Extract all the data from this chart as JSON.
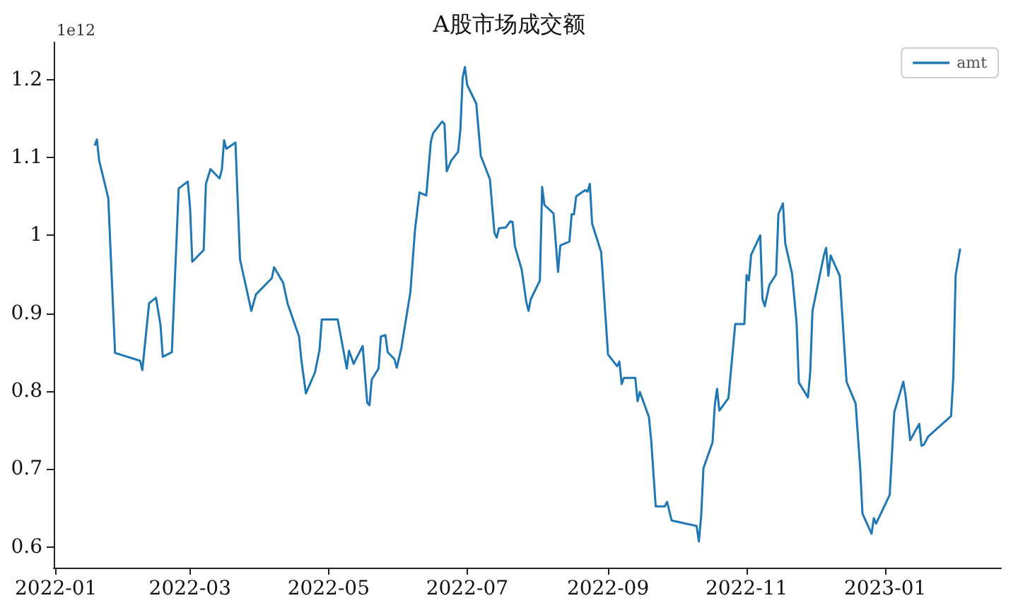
{
  "chart_data": {
    "type": "line",
    "title": "A股市场成交额",
    "annotations": [
      "1e12"
    ],
    "legend": "top right",
    "grid": false,
    "xlim": [
      "2021-12-31",
      "2023-02-21"
    ],
    "xticks": [
      "2022-01",
      "2022-03",
      "2022-05",
      "2022-07",
      "2022-09",
      "2022-11",
      "2023-01"
    ],
    "ylim": [
      0.5735,
      1.2476
    ],
    "yticks": [
      0.6,
      0.7,
      0.8,
      0.9,
      1.0,
      1.1,
      1.2
    ],
    "x": [
      "2022-01-18",
      "2022-01-19",
      "2022-01-20",
      "2022-01-24",
      "2022-01-27",
      "2022-02-07",
      "2022-02-08",
      "2022-02-11",
      "2022-02-14",
      "2022-02-16",
      "2022-02-17",
      "2022-02-21",
      "2022-02-24",
      "2022-02-28",
      "2022-03-01",
      "2022-03-02",
      "2022-03-07",
      "2022-03-08",
      "2022-03-10",
      "2022-03-14",
      "2022-03-15",
      "2022-03-16",
      "2022-03-17",
      "2022-03-21",
      "2022-03-23",
      "2022-03-28",
      "2022-03-30",
      "2022-04-06",
      "2022-04-07",
      "2022-04-11",
      "2022-04-13",
      "2022-04-18",
      "2022-04-19",
      "2022-04-21",
      "2022-04-25",
      "2022-04-27",
      "2022-04-28",
      "2022-05-05",
      "2022-05-09",
      "2022-05-10",
      "2022-05-12",
      "2022-05-16",
      "2022-05-18",
      "2022-05-19",
      "2022-05-20",
      "2022-05-23",
      "2022-05-24",
      "2022-05-26",
      "2022-05-27",
      "2022-05-30",
      "2022-05-31",
      "2022-06-02",
      "2022-06-06",
      "2022-06-08",
      "2022-06-10",
      "2022-06-13",
      "2022-06-15",
      "2022-06-16",
      "2022-06-20",
      "2022-06-21",
      "2022-06-22",
      "2022-06-24",
      "2022-06-27",
      "2022-06-28",
      "2022-06-29",
      "2022-06-30",
      "2022-07-01",
      "2022-07-05",
      "2022-07-07",
      "2022-07-11",
      "2022-07-13",
      "2022-07-14",
      "2022-07-15",
      "2022-07-18",
      "2022-07-20",
      "2022-07-21",
      "2022-07-22",
      "2022-07-25",
      "2022-07-27",
      "2022-07-28",
      "2022-07-29",
      "2022-08-02",
      "2022-08-03",
      "2022-08-04",
      "2022-08-08",
      "2022-08-10",
      "2022-08-11",
      "2022-08-15",
      "2022-08-16",
      "2022-08-17",
      "2022-08-18",
      "2022-08-22",
      "2022-08-23",
      "2022-08-24",
      "2022-08-25",
      "2022-08-29",
      "2022-09-01",
      "2022-09-05",
      "2022-09-06",
      "2022-09-07",
      "2022-09-08",
      "2022-09-13",
      "2022-09-14",
      "2022-09-15",
      "2022-09-19",
      "2022-09-20",
      "2022-09-22",
      "2022-09-26",
      "2022-09-27",
      "2022-09-29",
      "2022-10-10",
      "2022-10-11",
      "2022-10-12",
      "2022-10-13",
      "2022-10-17",
      "2022-10-18",
      "2022-10-19",
      "2022-10-20",
      "2022-10-24",
      "2022-10-27",
      "2022-10-31",
      "2022-11-01",
      "2022-11-02",
      "2022-11-03",
      "2022-11-07",
      "2022-11-08",
      "2022-11-09",
      "2022-11-11",
      "2022-11-14",
      "2022-11-15",
      "2022-11-17",
      "2022-11-18",
      "2022-11-21",
      "2022-11-23",
      "2022-11-24",
      "2022-11-28",
      "2022-11-29",
      "2022-11-30",
      "2022-12-05",
      "2022-12-06",
      "2022-12-07",
      "2022-12-08",
      "2022-12-12",
      "2022-12-15",
      "2022-12-19",
      "2022-12-21",
      "2022-12-22",
      "2022-12-26",
      "2022-12-27",
      "2022-12-28",
      "2023-01-03",
      "2023-01-05",
      "2023-01-09",
      "2023-01-10",
      "2023-01-12",
      "2023-01-16",
      "2023-01-17",
      "2023-01-18",
      "2023-01-20",
      "2023-01-30",
      "2023-01-31",
      "2023-02-01",
      "2023-02-03"
    ],
    "series": [
      {
        "name": "amt",
        "color": "#1f77b4",
        "values": [
          1.115,
          1.123,
          1.096,
          1.048,
          0.849,
          0.839,
          0.827,
          0.913,
          0.92,
          0.885,
          0.844,
          0.85,
          1.06,
          1.069,
          1.036,
          0.966,
          0.981,
          1.066,
          1.085,
          1.073,
          1.084,
          1.122,
          1.111,
          1.119,
          0.969,
          0.903,
          0.924,
          0.945,
          0.959,
          0.939,
          0.912,
          0.87,
          0.84,
          0.797,
          0.824,
          0.853,
          0.892,
          0.892,
          0.829,
          0.852,
          0.835,
          0.858,
          0.785,
          0.782,
          0.815,
          0.829,
          0.87,
          0.872,
          0.85,
          0.841,
          0.83,
          0.855,
          0.927,
          1.006,
          1.055,
          1.051,
          1.12,
          1.131,
          1.146,
          1.143,
          1.082,
          1.096,
          1.107,
          1.135,
          1.202,
          1.216,
          1.193,
          1.169,
          1.102,
          1.072,
          1.003,
          0.997,
          1.009,
          1.01,
          1.018,
          1.017,
          0.986,
          0.956,
          0.915,
          0.903,
          0.918,
          0.942,
          1.062,
          1.039,
          1.028,
          0.953,
          0.987,
          0.992,
          1.027,
          1.027,
          1.05,
          1.058,
          1.056,
          1.066,
          1.015,
          0.978,
          0.847,
          0.832,
          0.838,
          0.809,
          0.817,
          0.817,
          0.787,
          0.799,
          0.767,
          0.737,
          0.652,
          0.652,
          0.658,
          0.634,
          0.627,
          0.607,
          0.64,
          0.701,
          0.734,
          0.782,
          0.803,
          0.775,
          0.791,
          0.886,
          0.886,
          0.949,
          0.942,
          0.975,
          1.0,
          0.918,
          0.909,
          0.936,
          0.95,
          1.027,
          1.041,
          0.99,
          0.951,
          0.888,
          0.811,
          0.792,
          0.824,
          0.903,
          0.974,
          0.984,
          0.948,
          0.974,
          0.948,
          0.812,
          0.784,
          0.701,
          0.643,
          0.617,
          0.637,
          0.63,
          0.667,
          0.773,
          0.812,
          0.794,
          0.737,
          0.758,
          0.73,
          0.731,
          0.742,
          0.768,
          0.818,
          0.948,
          0.983
        ]
      }
    ]
  }
}
